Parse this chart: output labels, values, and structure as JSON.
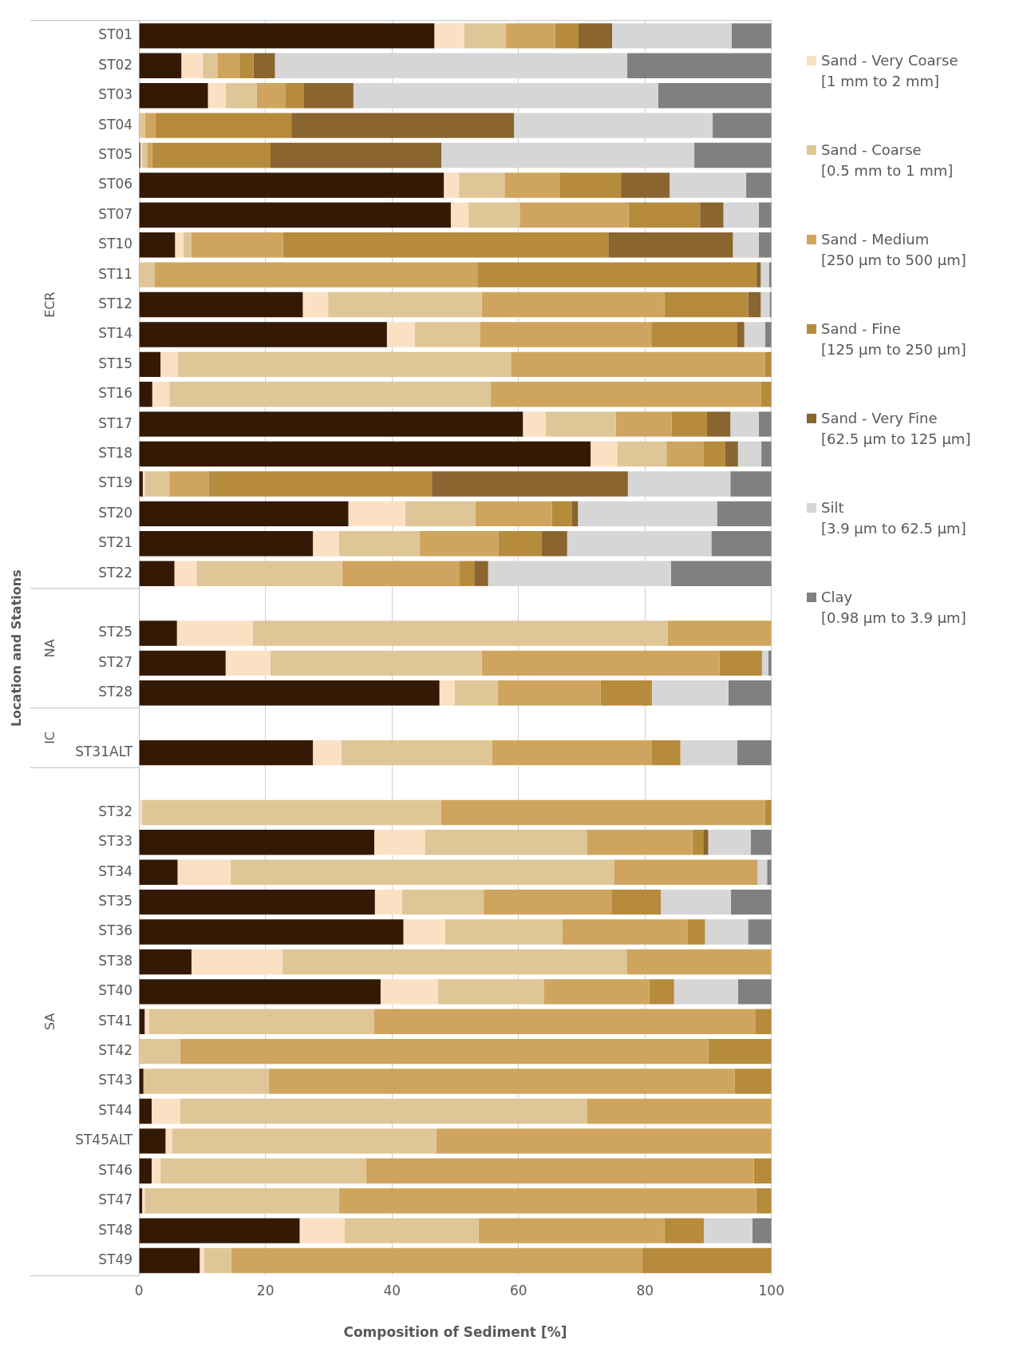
{
  "chart_data": {
    "type": "bar",
    "orientation": "horizontal",
    "stacked": true,
    "xlabel": "Composition of Sediment [%]",
    "ylabel": "Location and Stations",
    "annotations": [
      "ECR",
      "NA",
      "IC",
      "SA"
    ],
    "categories": [
      "ST01",
      "ST02",
      "ST03",
      "ST04",
      "ST05",
      "ST06",
      "ST07",
      "ST10",
      "ST11",
      "ST12",
      "ST14",
      "ST15",
      "ST16",
      "ST17",
      "ST18",
      "ST19",
      "ST20",
      "ST21",
      "ST22",
      null,
      "ST25",
      "ST27",
      "ST28",
      null,
      "ST31ALT",
      null,
      "ST32",
      "ST33",
      "ST34",
      "ST35",
      "ST36",
      "ST38",
      "ST40",
      "ST41",
      "ST42",
      "ST43",
      "ST44",
      "ST45ALT",
      "ST46",
      "ST47",
      "ST48",
      "ST49"
    ],
    "series": [
      {
        "color": "#341a04",
        "values": [
          46.7,
          6.7,
          10.9,
          0,
          0.2,
          48.2,
          49.3,
          5.7,
          0,
          25.9,
          39.2,
          3.4,
          2.1,
          60.7,
          71.4,
          0.6,
          33.1,
          27.5,
          5.6,
          null,
          6.0,
          13.7,
          47.5,
          null,
          27.5,
          null,
          0,
          37.2,
          6.1,
          37.3,
          41.8,
          8.3,
          38.2,
          0.9,
          0,
          0.7,
          2.0,
          4.2,
          2.0,
          0.5,
          25.4,
          9.6
        ]
      },
      {
        "name": "Sand - Very Coarse [1 mm to 2 mm]",
        "color": "#fbe0c4",
        "values": [
          4.7,
          3.4,
          2.8,
          0,
          0.3,
          2.4,
          2.8,
          1.3,
          0,
          4.0,
          4.4,
          2.7,
          2.7,
          3.6,
          4.2,
          0.3,
          9.0,
          4.1,
          3.5,
          null,
          12.0,
          7.1,
          2.4,
          null,
          4.5,
          null,
          0.5,
          8.0,
          8.4,
          4.3,
          6.6,
          14.4,
          9.1,
          0.7,
          0,
          0,
          4.5,
          1.0,
          1.4,
          0.4,
          7.1,
          0.7
        ]
      },
      {
        "name": "Sand - Coarse [0.5 mm to 1 mm]",
        "color": "#dfc696",
        "values": [
          6.6,
          2.3,
          4.9,
          1.0,
          0.8,
          7.2,
          8.1,
          1.3,
          2.5,
          24.3,
          10.3,
          52.7,
          50.8,
          11.1,
          7.8,
          3.9,
          11.1,
          12.8,
          23.0,
          null,
          65.6,
          33.4,
          6.8,
          null,
          23.8,
          null,
          47.3,
          25.6,
          60.6,
          12.9,
          18.5,
          54.4,
          16.7,
          35.6,
          6.5,
          19.8,
          64.3,
          41.8,
          32.5,
          30.7,
          21.2,
          4.3
        ]
      },
      {
        "name": "Sand - Medium [250 µm to 500 µm]",
        "color": "#cfa45e",
        "values": [
          7.8,
          3.5,
          4.5,
          1.6,
          0.8,
          8.7,
          17.2,
          14.5,
          51.0,
          28.9,
          27.1,
          40.2,
          42.7,
          8.8,
          5.9,
          6.2,
          12.1,
          12.4,
          18.6,
          null,
          16.4,
          37.6,
          16.3,
          null,
          25.3,
          null,
          51.2,
          16.7,
          22.7,
          20.3,
          19.8,
          22.9,
          16.7,
          60.3,
          83.5,
          73.7,
          29.2,
          53.0,
          61.3,
          66.0,
          29.4,
          64.9
        ]
      },
      {
        "name": "Sand - Fine [125 µm to 250 µm]",
        "color": "#b68b3c",
        "values": [
          3.7,
          2.2,
          3.0,
          21.5,
          18.7,
          9.7,
          11.3,
          51.4,
          44.1,
          13.2,
          13.6,
          1.0,
          1.7,
          5.6,
          3.4,
          35.3,
          3.1,
          6.9,
          2.3,
          null,
          0,
          6.7,
          8.1,
          null,
          4.5,
          null,
          1.0,
          1.7,
          0,
          7.7,
          2.8,
          0,
          3.9,
          2.5,
          10.0,
          5.8,
          0,
          0,
          2.8,
          2.4,
          6.2,
          20.5
        ]
      },
      {
        "name": "Sand - Very Fine [62.5 µm to 125 µm]",
        "color": "#8a6530",
        "values": [
          5.3,
          3.4,
          7.8,
          35.2,
          27.0,
          7.7,
          3.7,
          19.7,
          0.7,
          2.0,
          1.1,
          0,
          0,
          3.7,
          2.0,
          31.0,
          1.0,
          4.0,
          2.2,
          null,
          0,
          0,
          0,
          null,
          0,
          null,
          0,
          0.8,
          0,
          0,
          0,
          0,
          0,
          0,
          0,
          0,
          0,
          0,
          0,
          0,
          0,
          0
        ]
      },
      {
        "name": "Silt [3.9 µm to 62.5 µm]",
        "color": "#d6d6d6",
        "values": [
          18.9,
          55.7,
          48.2,
          31.4,
          40.0,
          12.1,
          5.6,
          4.1,
          1.3,
          1.4,
          3.3,
          0,
          0,
          4.5,
          3.7,
          16.2,
          22.0,
          22.8,
          28.9,
          null,
          0,
          1.0,
          12.1,
          null,
          9.0,
          null,
          0,
          6.7,
          1.5,
          11.1,
          6.8,
          0,
          10.1,
          0,
          0,
          0,
          0,
          0,
          0,
          0,
          7.7,
          0
        ]
      },
      {
        "name": "Clay [0.98 µm to 3.9 µm]",
        "color": "#808080",
        "values": [
          6.3,
          22.8,
          17.9,
          9.3,
          12.2,
          4.0,
          2.0,
          2.0,
          0.4,
          0.3,
          1.0,
          0,
          0,
          2.0,
          1.6,
          6.5,
          8.6,
          9.5,
          15.9,
          null,
          0,
          0.5,
          6.8,
          null,
          5.4,
          null,
          0,
          3.3,
          0.7,
          6.4,
          3.7,
          0,
          5.3,
          0,
          0,
          0,
          0,
          0,
          0,
          0,
          3.0,
          0
        ]
      }
    ],
    "xlim": [
      0,
      100
    ],
    "xticks": [
      0,
      20,
      40,
      60,
      80,
      100
    ],
    "grid": "x",
    "legend": "right"
  }
}
